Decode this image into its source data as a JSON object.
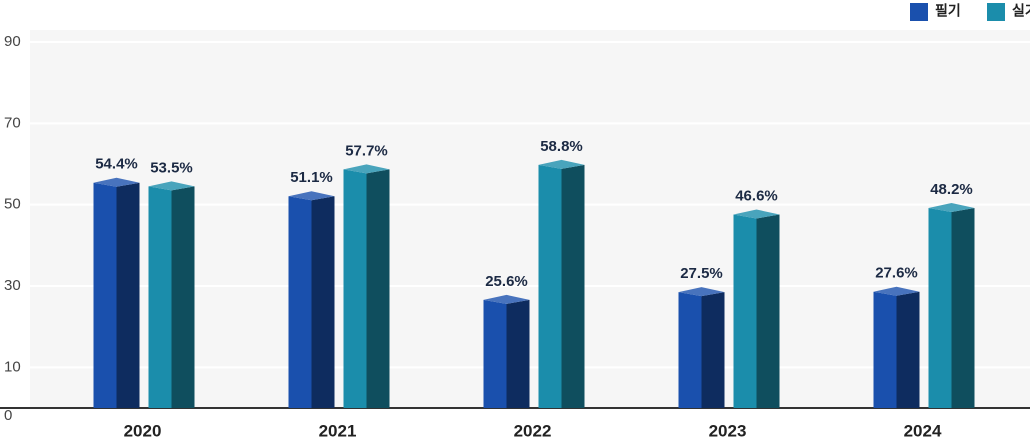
{
  "chart_data": {
    "type": "bar3d",
    "categories": [
      "2020",
      "2021",
      "2022",
      "2023",
      "2024"
    ],
    "series": [
      {
        "name": "필기",
        "color": "#1a50ad",
        "values": [
          54.4,
          51.1,
          25.6,
          27.5,
          27.6
        ],
        "value_labels": [
          "54.4%",
          "51.1%",
          "25.6%",
          "27.5%",
          "27.6%"
        ]
      },
      {
        "name": "실기",
        "color": "#1b8dab",
        "values": [
          53.5,
          57.7,
          58.8,
          46.6,
          48.2
        ],
        "value_labels": [
          "53.5%",
          "57.7%",
          "58.8%",
          "46.6%",
          "48.2%"
        ]
      }
    ],
    "ylim": [
      0,
      90
    ],
    "yticks": [
      0,
      10,
      30,
      50,
      70,
      90
    ],
    "grid": true,
    "legend": "top-right"
  }
}
